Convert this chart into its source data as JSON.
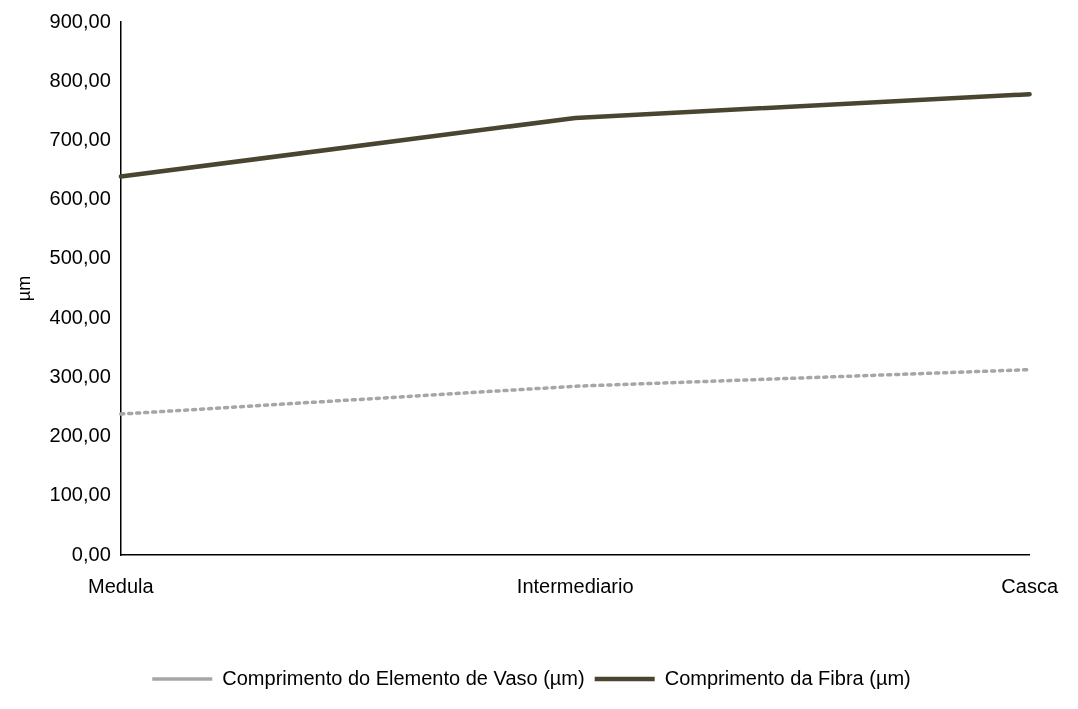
{
  "chart_data": {
    "type": "line",
    "ylabel": "µm",
    "categories": [
      "Medula",
      "Intermediario",
      "Casca"
    ],
    "series": [
      {
        "name": "Comprimento do Elemento de Vaso (µm)",
        "color": "#a6a6a6",
        "line_style": "dotted",
        "values": [
          238,
          285,
          313
        ]
      },
      {
        "name": "Comprimento da Fibra (µm)",
        "color": "#4a4530",
        "line_style": "solid",
        "values": [
          639,
          738,
          778
        ]
      }
    ],
    "ylim": [
      0,
      900
    ],
    "yticks": [
      {
        "value": 0,
        "label": "0,00"
      },
      {
        "value": 100,
        "label": "100,00"
      },
      {
        "value": 200,
        "label": "200,00"
      },
      {
        "value": 300,
        "label": "300,00"
      },
      {
        "value": 400,
        "label": "400,00"
      },
      {
        "value": 500,
        "label": "500,00"
      },
      {
        "value": 600,
        "label": "600,00"
      },
      {
        "value": 700,
        "label": "700,00"
      },
      {
        "value": 800,
        "label": "800,00"
      },
      {
        "value": 900,
        "label": "900,00"
      }
    ],
    "grid": false,
    "legend": "bottom",
    "marker": "none"
  }
}
